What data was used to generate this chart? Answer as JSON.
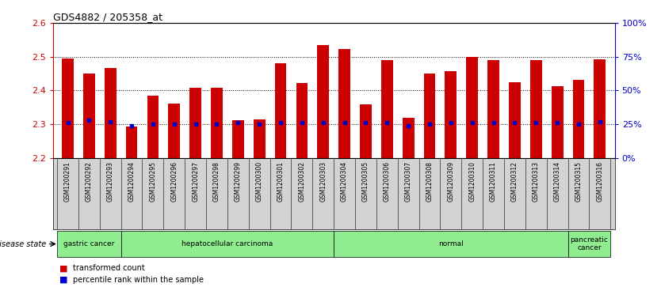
{
  "title": "GDS4882 / 205358_at",
  "samples": [
    "GSM1200291",
    "GSM1200292",
    "GSM1200293",
    "GSM1200294",
    "GSM1200295",
    "GSM1200296",
    "GSM1200297",
    "GSM1200298",
    "GSM1200299",
    "GSM1200300",
    "GSM1200301",
    "GSM1200302",
    "GSM1200303",
    "GSM1200304",
    "GSM1200305",
    "GSM1200306",
    "GSM1200307",
    "GSM1200308",
    "GSM1200309",
    "GSM1200310",
    "GSM1200311",
    "GSM1200312",
    "GSM1200313",
    "GSM1200314",
    "GSM1200315",
    "GSM1200316"
  ],
  "transformed_count": [
    2.495,
    2.449,
    2.466,
    2.293,
    2.385,
    2.362,
    2.407,
    2.407,
    2.312,
    2.315,
    2.48,
    2.421,
    2.535,
    2.522,
    2.358,
    2.491,
    2.318,
    2.449,
    2.458,
    2.5,
    2.49,
    2.425,
    2.49,
    2.413,
    2.432,
    2.492
  ],
  "percentile_values": [
    26,
    28,
    27,
    24,
    25,
    25,
    25,
    25,
    26,
    25,
    26,
    26,
    26,
    26,
    26,
    26,
    24,
    25,
    26,
    26,
    26,
    26,
    26,
    26,
    25,
    27
  ],
  "disease_groups": [
    {
      "label": "gastric cancer",
      "start": 0,
      "end": 3,
      "color": "#90EE90"
    },
    {
      "label": "hepatocellular carcinoma",
      "start": 3,
      "end": 13,
      "color": "#90EE90"
    },
    {
      "label": "normal",
      "start": 13,
      "end": 24,
      "color": "#90EE90"
    },
    {
      "label": "pancreatic\ncancer",
      "start": 24,
      "end": 26,
      "color": "#90EE90"
    }
  ],
  "ylim": [
    2.2,
    2.6
  ],
  "yticks": [
    2.2,
    2.3,
    2.4,
    2.5,
    2.6
  ],
  "right_yticks": [
    0,
    25,
    50,
    75,
    100
  ],
  "bar_color": "#CC0000",
  "percentile_color": "#0000CC",
  "bg_color": "#FFFFFF",
  "plot_bg": "#FFFFFF",
  "tick_label_color_left": "#CC0000",
  "tick_label_color_right": "#0000CC",
  "grid_color": "#000000",
  "sample_label_bg": "#D3D3D3",
  "disease_state_label": "disease state"
}
